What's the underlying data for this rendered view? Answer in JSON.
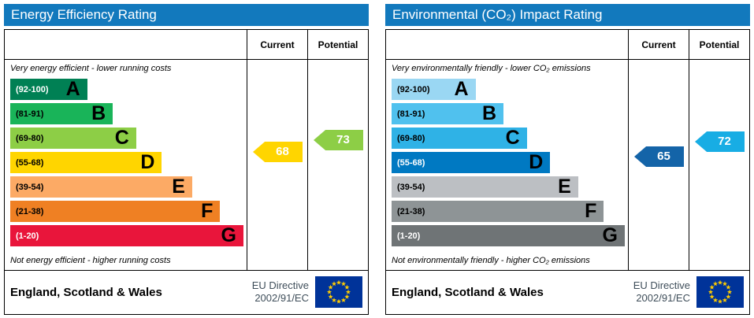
{
  "style": {
    "header_bg": "#1279bd",
    "border_color": "#000000",
    "directive_text_color": "#3f4e5a",
    "flag_bg": "#003399",
    "flag_star": "#ffcc00",
    "page_bg": "#ffffff"
  },
  "chart_data": [
    {
      "type": "bar",
      "orientation": "horizontal",
      "title": "Energy Efficiency Rating",
      "columns": [
        "Current",
        "Potential"
      ],
      "top_note": "Very energy efficient - lower running costs",
      "bottom_note": "Not energy efficient - higher running costs",
      "value_scale": [
        1,
        100
      ],
      "categories": [
        "A",
        "B",
        "C",
        "D",
        "E",
        "F",
        "G"
      ],
      "bands": [
        {
          "letter": "A",
          "range_label": "(92-100)",
          "min": 92,
          "max": 100,
          "color": "#008054",
          "range_text_color": "#ffffff",
          "width_pct": 33
        },
        {
          "letter": "B",
          "range_label": "(81-91)",
          "min": 81,
          "max": 91,
          "color": "#19b459",
          "range_text_color": "#000000",
          "width_pct": 44
        },
        {
          "letter": "C",
          "range_label": "(69-80)",
          "min": 69,
          "max": 80,
          "color": "#8dce46",
          "range_text_color": "#000000",
          "width_pct": 54
        },
        {
          "letter": "D",
          "range_label": "(55-68)",
          "min": 55,
          "max": 68,
          "color": "#ffd500",
          "range_text_color": "#000000",
          "width_pct": 65
        },
        {
          "letter": "E",
          "range_label": "(39-54)",
          "min": 39,
          "max": 54,
          "color": "#fcaa65",
          "range_text_color": "#000000",
          "width_pct": 78
        },
        {
          "letter": "F",
          "range_label": "(21-38)",
          "min": 21,
          "max": 38,
          "color": "#ef8023",
          "range_text_color": "#000000",
          "width_pct": 90
        },
        {
          "letter": "G",
          "range_label": "(1-20)",
          "min": 1,
          "max": 20,
          "color": "#e9153b",
          "range_text_color": "#ffffff",
          "width_pct": 100
        }
      ],
      "current": {
        "label": "Current",
        "value": 68,
        "color": "#ffd500"
      },
      "potential": {
        "label": "Potential",
        "value": 73,
        "color": "#8dce46"
      },
      "footer": {
        "region": "England, Scotland & Wales",
        "directive_lines": [
          "EU Directive",
          "2002/91/EC"
        ]
      }
    },
    {
      "type": "bar",
      "orientation": "horizontal",
      "title": "Environmental (CO₂) Impact Rating",
      "columns": [
        "Current",
        "Potential"
      ],
      "top_note": "Very environmentally friendly - lower CO₂ emissions",
      "bottom_note": "Not environmentally friendly - higher CO₂ emissions",
      "value_scale": [
        1,
        100
      ],
      "categories": [
        "A",
        "B",
        "C",
        "D",
        "E",
        "F",
        "G"
      ],
      "bands": [
        {
          "letter": "A",
          "range_label": "(92-100)",
          "min": 92,
          "max": 100,
          "color": "#9ad7f3",
          "range_text_color": "#000000",
          "width_pct": 36
        },
        {
          "letter": "B",
          "range_label": "(81-91)",
          "min": 81,
          "max": 91,
          "color": "#50c1ee",
          "range_text_color": "#000000",
          "width_pct": 48
        },
        {
          "letter": "C",
          "range_label": "(69-80)",
          "min": 69,
          "max": 80,
          "color": "#2fb2e6",
          "range_text_color": "#000000",
          "width_pct": 58
        },
        {
          "letter": "D",
          "range_label": "(55-68)",
          "min": 55,
          "max": 68,
          "color": "#0079c2",
          "range_text_color": "#ffffff",
          "width_pct": 68
        },
        {
          "letter": "E",
          "range_label": "(39-54)",
          "min": 39,
          "max": 54,
          "color": "#bcbfc3",
          "range_text_color": "#000000",
          "width_pct": 80
        },
        {
          "letter": "F",
          "range_label": "(21-38)",
          "min": 21,
          "max": 38,
          "color": "#8e9496",
          "range_text_color": "#000000",
          "width_pct": 91
        },
        {
          "letter": "G",
          "range_label": "(1-20)",
          "min": 1,
          "max": 20,
          "color": "#6f7476",
          "range_text_color": "#ffffff",
          "width_pct": 100
        }
      ],
      "current": {
        "label": "Current",
        "value": 65,
        "color": "#1464a8"
      },
      "potential": {
        "label": "Potential",
        "value": 72,
        "color": "#18ade4"
      },
      "footer": {
        "region": "England, Scotland & Wales",
        "directive_lines": [
          "EU Directive",
          "2002/91/EC"
        ]
      }
    }
  ]
}
